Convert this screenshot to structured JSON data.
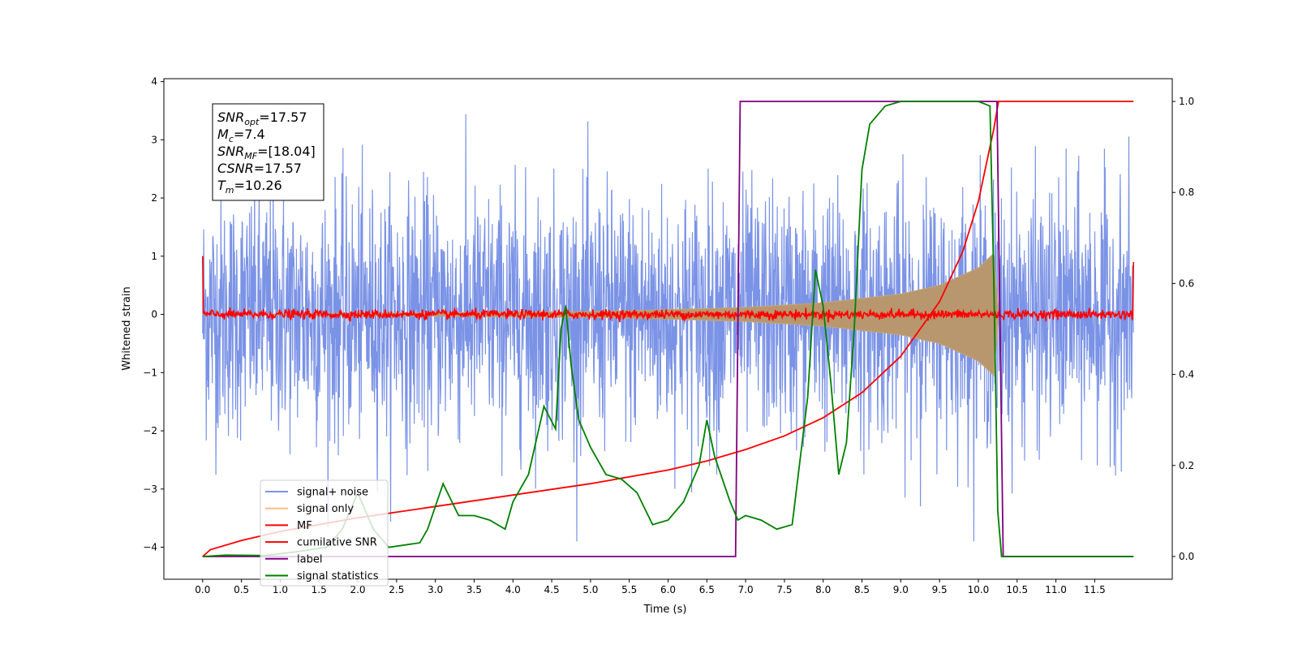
{
  "chart_data": {
    "type": "line",
    "title": "",
    "xlabel": "Time (s)",
    "ylabel": "Whitened strain",
    "y2label": "",
    "xlim": [
      -0.5,
      12.5
    ],
    "ylim": [
      -4.55,
      4.05
    ],
    "y2lim": [
      -0.05,
      1.05
    ],
    "x_ticks": [
      0.0,
      0.5,
      1.0,
      1.5,
      2.0,
      2.5,
      3.0,
      3.5,
      4.0,
      4.5,
      5.0,
      5.5,
      6.0,
      6.5,
      7.0,
      7.5,
      8.0,
      8.5,
      9.0,
      9.5,
      10.0,
      10.5,
      11.0,
      11.5
    ],
    "y_ticks": [
      4,
      3,
      2,
      1,
      0,
      -1,
      -2,
      -3,
      -4
    ],
    "y2_ticks": [
      0.0,
      0.2,
      0.4,
      0.6,
      0.8,
      1.0
    ],
    "grid": false,
    "legend_position": "lower-left",
    "info_box": {
      "lines": [
        {
          "base": "SNR",
          "sub": "opt",
          "value": "=17.57"
        },
        {
          "base": "M",
          "sub": "c",
          "value": "=7.4"
        },
        {
          "base": "SNR",
          "sub": "MF",
          "value": "=[18.04]"
        },
        {
          "base": "CSNR",
          "sub": "",
          "value": "=17.57"
        },
        {
          "base": "T",
          "sub": "m",
          "value": "=10.26"
        }
      ]
    },
    "series": [
      {
        "name": "signal+ noise",
        "color": "#7b93e6",
        "axis": "left",
        "description_values": {
          "x_range": [
            0.0,
            12.0
          ],
          "noise_amplitude_peak": 3.6
        }
      },
      {
        "name": "signal only",
        "color": "#f5c07a",
        "axis": "left",
        "description_values": {
          "x_range": [
            0.0,
            10.26
          ],
          "envelope": [
            [
              0.0,
              0.0
            ],
            [
              5.0,
              0.05
            ],
            [
              6.0,
              0.08
            ],
            [
              7.0,
              0.12
            ],
            [
              8.0,
              0.2
            ],
            [
              9.0,
              0.35
            ],
            [
              9.5,
              0.5
            ],
            [
              10.0,
              0.8
            ],
            [
              10.2,
              1.05
            ],
            [
              10.26,
              0.0
            ]
          ]
        }
      },
      {
        "name": "MF",
        "color": "#ff0000",
        "axis": "left",
        "description_values": {
          "x_range": [
            0.0,
            12.0
          ],
          "start_value": 1.0,
          "end_value": 0.9,
          "baseline": 0.0
        }
      },
      {
        "name": "cumilative SNR",
        "color": "#ff0000",
        "axis": "right",
        "x": [
          0.0,
          0.1,
          0.5,
          1.0,
          2.0,
          3.0,
          4.0,
          5.0,
          6.0,
          6.5,
          7.0,
          7.5,
          8.0,
          8.5,
          9.0,
          9.5,
          9.8,
          10.0,
          10.1,
          10.2,
          10.26,
          11.0,
          12.0
        ],
        "y": [
          0.0,
          0.015,
          0.035,
          0.055,
          0.085,
          0.11,
          0.135,
          0.16,
          0.19,
          0.21,
          0.235,
          0.265,
          0.305,
          0.36,
          0.44,
          0.56,
          0.67,
          0.78,
          0.86,
          0.94,
          1.0,
          1.0,
          1.0
        ]
      },
      {
        "name": "label",
        "color": "#800080",
        "axis": "right",
        "x": [
          0.0,
          6.87,
          6.93,
          10.24,
          10.32,
          12.0
        ],
        "y": [
          0.0,
          0.0,
          1.0,
          1.0,
          0.0,
          0.0
        ]
      },
      {
        "name": "signal statistics",
        "color": "#008000",
        "axis": "right",
        "x": [
          0.0,
          0.3,
          0.8,
          1.2,
          1.6,
          1.8,
          2.0,
          2.2,
          2.4,
          2.8,
          2.9,
          3.1,
          3.3,
          3.5,
          3.7,
          3.9,
          4.0,
          4.2,
          4.4,
          4.55,
          4.62,
          4.68,
          4.75,
          4.85,
          5.0,
          5.2,
          5.4,
          5.6,
          5.8,
          6.0,
          6.2,
          6.4,
          6.5,
          6.6,
          6.8,
          6.9,
          7.0,
          7.2,
          7.4,
          7.6,
          7.8,
          7.9,
          8.0,
          8.1,
          8.2,
          8.3,
          8.4,
          8.5,
          8.6,
          8.8,
          9.0,
          9.5,
          10.0,
          10.15,
          10.2,
          10.25,
          10.3,
          11.0,
          12.0
        ],
        "y": [
          0.0,
          0.003,
          0.002,
          0.01,
          0.02,
          0.06,
          0.14,
          0.06,
          0.02,
          0.03,
          0.06,
          0.16,
          0.09,
          0.09,
          0.08,
          0.06,
          0.12,
          0.18,
          0.33,
          0.28,
          0.5,
          0.55,
          0.42,
          0.3,
          0.24,
          0.18,
          0.17,
          0.14,
          0.07,
          0.08,
          0.12,
          0.2,
          0.3,
          0.22,
          0.12,
          0.08,
          0.09,
          0.08,
          0.06,
          0.07,
          0.35,
          0.63,
          0.55,
          0.38,
          0.18,
          0.25,
          0.5,
          0.85,
          0.95,
          0.99,
          1.0,
          1.0,
          1.0,
          0.99,
          0.6,
          0.1,
          0.0,
          0.0,
          0.0
        ]
      }
    ]
  }
}
